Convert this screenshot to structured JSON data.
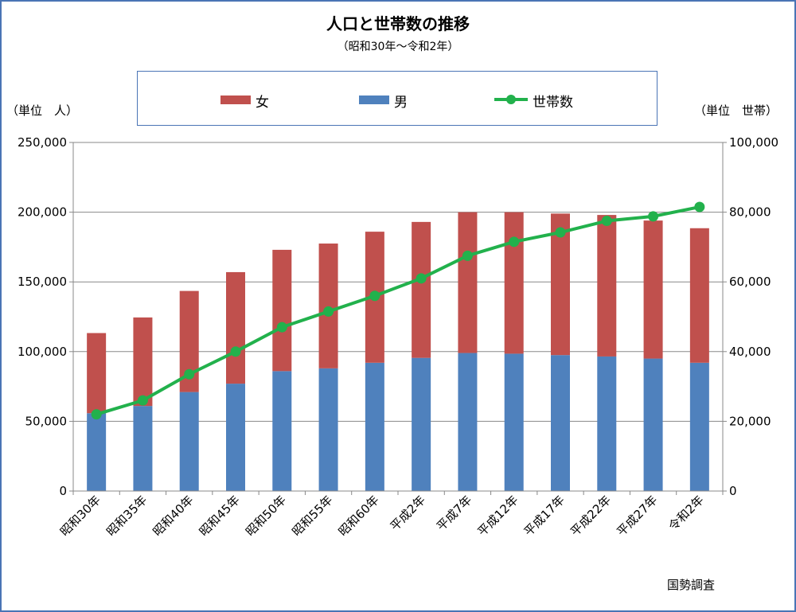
{
  "chart_data": {
    "type": "bar",
    "stacked": true,
    "title": "人口と世帯数の推移",
    "subtitle": "（昭和30年～令和2年）",
    "left_axis_label": "（単位　人）",
    "right_axis_label": "（単位　世帯）",
    "source": "国勢調査",
    "categories": [
      "昭和30年",
      "昭和35年",
      "昭和40年",
      "昭和45年",
      "昭和50年",
      "昭和55年",
      "昭和60年",
      "平成2年",
      "平成7年",
      "平成12年",
      "平成17年",
      "平成22年",
      "平成27年",
      "令和2年"
    ],
    "series": [
      {
        "name": "男",
        "type": "bar",
        "axis": "left",
        "color": "#4f81bd",
        "values": [
          55800,
          61000,
          71000,
          77000,
          86000,
          88000,
          92000,
          95500,
          99000,
          98500,
          97500,
          96500,
          95000,
          92000
        ]
      },
      {
        "name": "女",
        "type": "bar",
        "axis": "left",
        "color": "#c0504d",
        "values": [
          57500,
          63500,
          72500,
          80000,
          87000,
          89500,
          94000,
          97500,
          101000,
          101500,
          101500,
          101500,
          99000,
          96500
        ]
      },
      {
        "name": "世帯数",
        "type": "line",
        "axis": "right",
        "color": "#22b14c",
        "values": [
          22000,
          26000,
          33500,
          40000,
          47000,
          51500,
          56000,
          61000,
          67500,
          71500,
          74200,
          77500,
          78800,
          81500
        ]
      }
    ],
    "left_axis": {
      "min": 0,
      "max": 250000,
      "step": 50000,
      "tick_labels": [
        "0",
        "50,000",
        "100,000",
        "150,000",
        "200,000",
        "250,000"
      ]
    },
    "right_axis": {
      "min": 0,
      "max": 100000,
      "step": 20000,
      "tick_labels": [
        "0",
        "20,000",
        "40,000",
        "60,000",
        "80,000",
        "100,000"
      ]
    },
    "grid": true,
    "legend_placement": "top-center"
  }
}
